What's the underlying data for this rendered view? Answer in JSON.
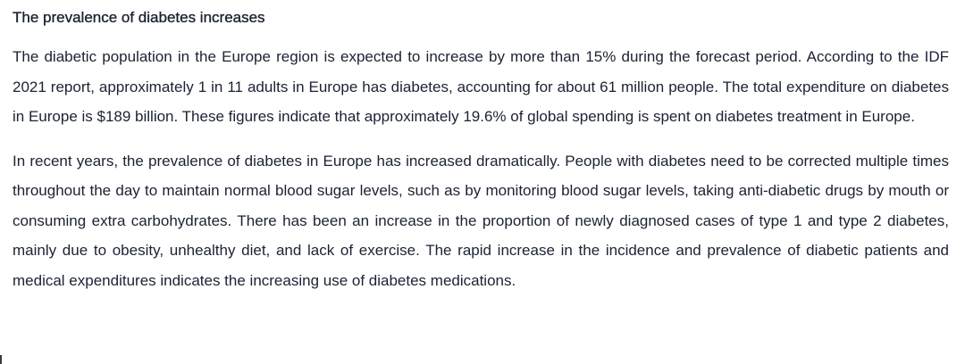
{
  "article": {
    "heading": "The prevalence of diabetes increases",
    "paragraphs": [
      "The diabetic population in the Europe region is expected to increase by more than 15% during the forecast period. According to the IDF 2021 report, approximately 1 in 11 adults in Europe has diabetes, accounting for about 61 million people. The total expenditure on diabetes in Europe is $189 billion. These figures indicate that approximately 19.6% of global spending is spent on diabetes treatment in Europe.",
      "In recent years, the prevalence of diabetes in Europe has increased dramatically. People with diabetes need to be corrected multiple times throughout the day to maintain normal blood sugar levels, such as by monitoring blood sugar levels, taking anti-diabetic drugs by mouth or consuming extra carbohydrates. There has been an increase in the proportion of newly diagnosed cases of type 1 and type 2 diabetes, mainly due to obesity, unhealthy diet, and lack of exercise. The rapid increase in the incidence and prevalence of diabetic patients and medical expenditures indicates the increasing use of diabetes medications."
    ]
  }
}
